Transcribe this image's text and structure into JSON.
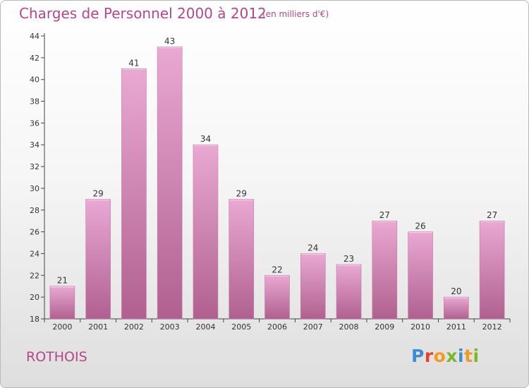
{
  "header": {
    "title": "Charges de Personnel 2000 à 2012",
    "unit_note": "(en milliers d'€)"
  },
  "footer": {
    "commune": "ROTHOIS",
    "logo_letters": [
      "P",
      "r",
      "o",
      "x",
      "i",
      "t",
      "i"
    ],
    "logo_colors": [
      "#3a8fd4",
      "#e8402f",
      "#f29a1f",
      "#7ab929",
      "#3a8fd4",
      "#f29a1f",
      "#7ab929"
    ]
  },
  "colors": {
    "bar_top": "#e9a9d2",
    "bar_bottom": "#b0608f",
    "text_accent": "#b5468a"
  },
  "chart_data": {
    "type": "bar",
    "title": "Charges de Personnel 2000 à 2012",
    "subtitle": "(en milliers d'€)",
    "categories": [
      "2000",
      "2001",
      "2002",
      "2003",
      "2004",
      "2005",
      "2006",
      "2007",
      "2008",
      "2009",
      "2010",
      "2011",
      "2012"
    ],
    "values": [
      21,
      29,
      41,
      43,
      34,
      29,
      22,
      24,
      23,
      27,
      26,
      20,
      27
    ],
    "ylim": [
      18,
      44
    ],
    "yticks": [
      18,
      20,
      22,
      24,
      26,
      28,
      30,
      32,
      34,
      36,
      38,
      40,
      42,
      44
    ],
    "grid": false,
    "legend": "none",
    "xlabel": "",
    "ylabel": ""
  }
}
